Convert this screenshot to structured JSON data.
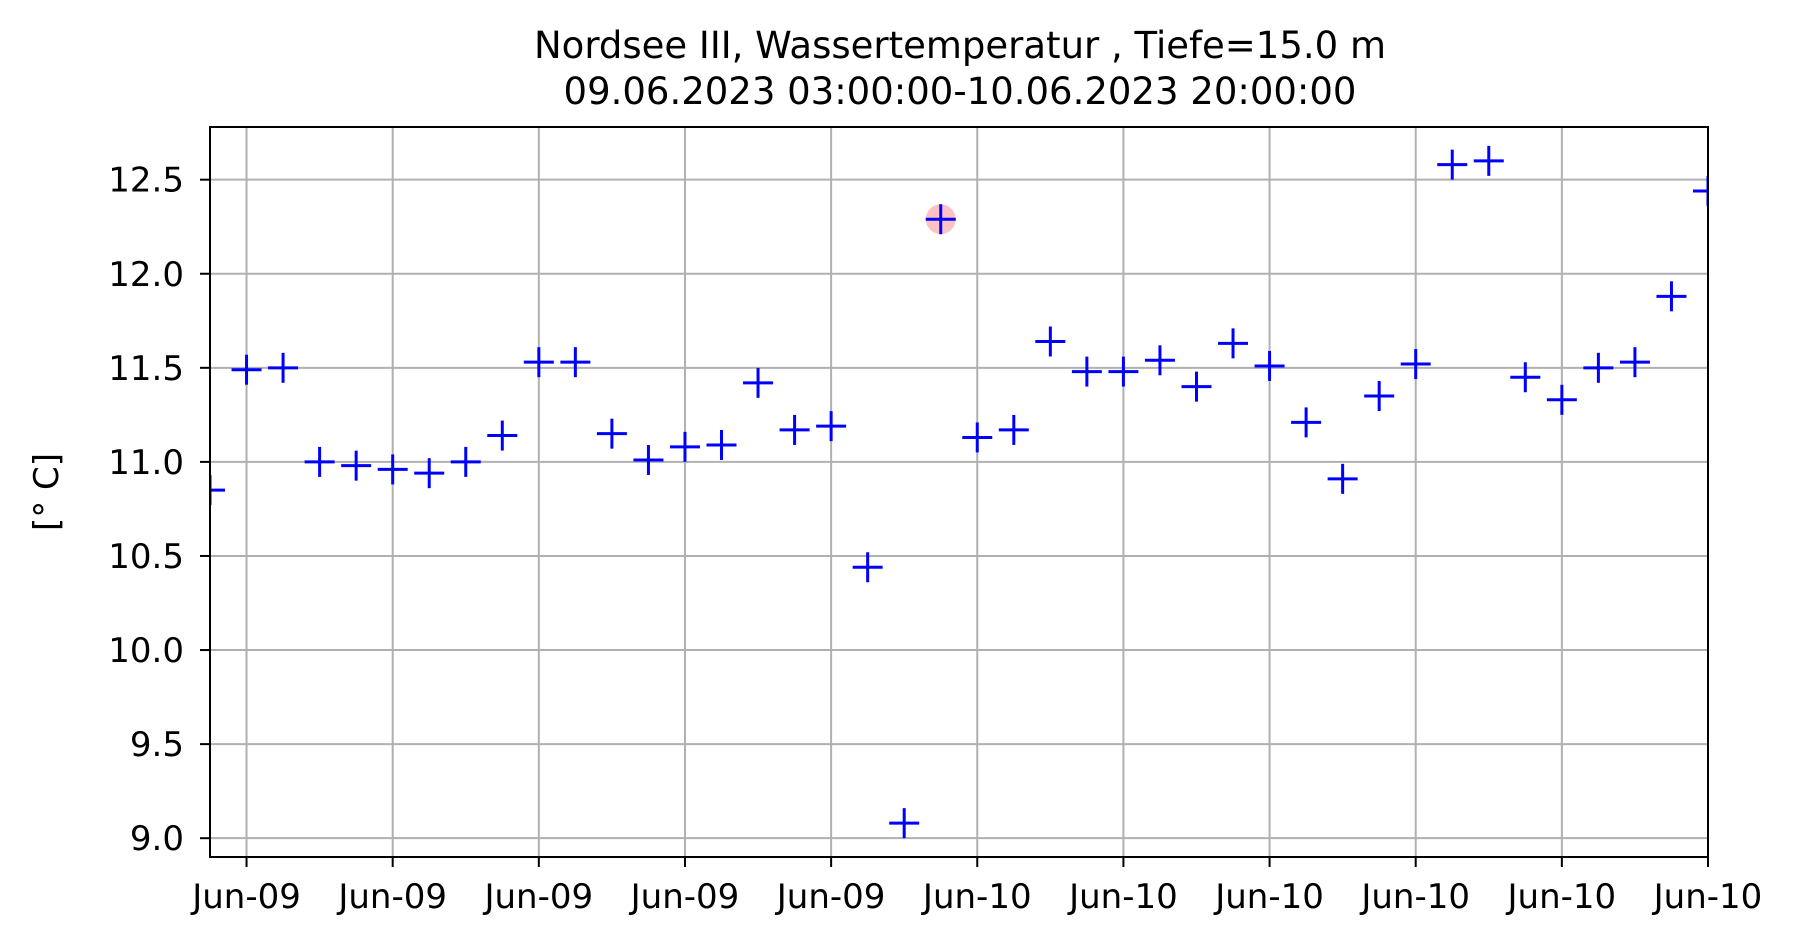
{
  "chart_data": {
    "type": "scatter",
    "title": "Nordsee III, Wassertemperatur , Tiefe=15.0 m",
    "subtitle": "09.06.2023 03:00:00-10.06.2023 20:00:00",
    "xlabel": "",
    "ylabel": "[° C]",
    "xlim": [
      "2023-06-09 03:00",
      "2023-06-10 20:00"
    ],
    "ylim": [
      8.9,
      12.78
    ],
    "grid": true,
    "x_ticks": [
      "2023-06-09 04:00",
      "2023-06-09 08:00",
      "2023-06-09 12:00",
      "2023-06-09 16:00",
      "2023-06-09 20:00",
      "2023-06-10 00:00",
      "2023-06-10 04:00",
      "2023-06-10 08:00",
      "2023-06-10 12:00",
      "2023-06-10 16:00",
      "2023-06-10 20:00"
    ],
    "x_tick_labels": [
      "Jun-09",
      "Jun-09",
      "Jun-09",
      "Jun-09",
      "Jun-09",
      "Jun-10",
      "Jun-10",
      "Jun-10",
      "Jun-10",
      "Jun-10",
      "Jun-10"
    ],
    "y_ticks": [
      9.0,
      9.5,
      10.0,
      10.5,
      11.0,
      11.5,
      12.0,
      12.5
    ],
    "y_tick_labels": [
      "9.0",
      "9.5",
      "10.0",
      "10.5",
      "11.0",
      "11.5",
      "12.0",
      "12.5"
    ],
    "marker": "+",
    "marker_color": "#0000ff",
    "highlight_color": "#ff9999",
    "x_labels": [
      "2023-06-09 03:00",
      "2023-06-09 04:00",
      "2023-06-09 05:00",
      "2023-06-09 06:00",
      "2023-06-09 07:00",
      "2023-06-09 08:00",
      "2023-06-09 09:00",
      "2023-06-09 10:00",
      "2023-06-09 11:00",
      "2023-06-09 12:00",
      "2023-06-09 13:00",
      "2023-06-09 14:00",
      "2023-06-09 15:00",
      "2023-06-09 16:00",
      "2023-06-09 17:00",
      "2023-06-09 18:00",
      "2023-06-09 19:00",
      "2023-06-09 20:00",
      "2023-06-09 21:00",
      "2023-06-09 22:00",
      "2023-06-09 23:00",
      "2023-06-10 00:00",
      "2023-06-10 01:00",
      "2023-06-10 02:00",
      "2023-06-10 03:00",
      "2023-06-10 04:00",
      "2023-06-10 05:00",
      "2023-06-10 06:00",
      "2023-06-10 07:00",
      "2023-06-10 08:00",
      "2023-06-10 09:00",
      "2023-06-10 10:00",
      "2023-06-10 11:00",
      "2023-06-10 12:00",
      "2023-06-10 13:00",
      "2023-06-10 14:00",
      "2023-06-10 15:00",
      "2023-06-10 16:00",
      "2023-06-10 17:00",
      "2023-06-10 18:00",
      "2023-06-10 19:00",
      "2023-06-10 20:00"
    ],
    "series": [
      {
        "values": [
          10.85,
          11.49,
          11.5,
          11.0,
          10.98,
          10.96,
          10.94,
          11.0,
          11.14,
          11.53,
          11.53,
          11.15,
          11.01,
          11.08,
          11.09,
          11.42,
          11.17,
          11.19,
          10.44,
          9.08,
          12.29,
          11.13,
          11.17,
          11.64,
          11.48,
          11.48,
          11.54,
          11.4,
          11.63,
          11.51,
          11.21,
          10.91,
          11.35,
          11.52,
          12.58,
          12.6,
          11.45,
          11.33,
          11.5,
          11.53,
          11.88,
          12.44
        ]
      }
    ],
    "highlighted_points": [
      "2023-06-09 23:00"
    ]
  }
}
